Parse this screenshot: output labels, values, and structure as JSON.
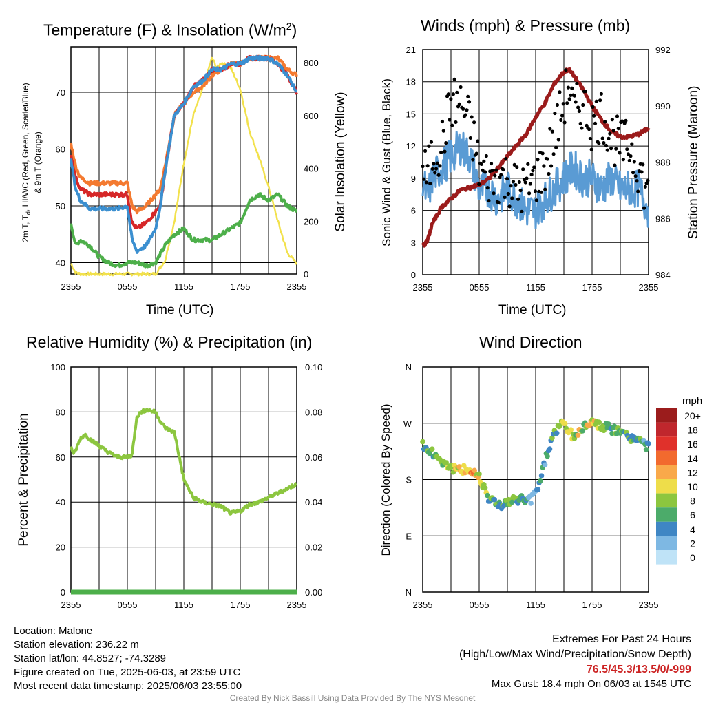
{
  "colors": {
    "temp": "#d62728",
    "dewpoint": "#4daf4a",
    "heat_index": "#3b8fd0",
    "temp_9m": "#f47a30",
    "solar": "#f2e14c",
    "wind": "#5a9bd4",
    "gust": "#000000",
    "pressure": "#9b1b1b",
    "rh": "#8cc63f",
    "precip": "#4daf4a",
    "extremes": "#cc2222",
    "credit": "#888888"
  },
  "charts": {
    "temp": {
      "title": "Temperature (F) & Insolation (W/m",
      "title_sup": "2",
      "title_end": ")",
      "ylabel_left_line1": "2m T, T",
      "ylabel_left_sub": "d",
      "ylabel_left_line1b": ", HI/WC (Red, Green, Scarlet/Blue)",
      "ylabel_left_line2": "& 9m T (Orange)",
      "ylabel_right": "Solar Insolation (Yellow)",
      "xlabel": "Time (UTC)"
    },
    "wind": {
      "title": "Winds (mph) & Pressure (mb)",
      "ylabel_left": "Sonic Wind & Gust (Blue, Black)",
      "ylabel_right": "Station Pressure (Maroon)",
      "xlabel": "Time (UTC)"
    },
    "rh": {
      "title": "Relative Humidity (%) & Precipitation (in)",
      "ylabel_left": "Percent & Precipitation"
    },
    "dir": {
      "title": "Wind Direction",
      "ylabel_left": "Direction (Colored By Speed)"
    }
  },
  "colorbar": {
    "unit": "mph",
    "labels": [
      "20+",
      "18",
      "16",
      "14",
      "12",
      "10",
      "8",
      "6",
      "4",
      "2",
      "0"
    ],
    "colors": [
      "#9b1c1c",
      "#c0272d",
      "#e0312b",
      "#f26a2e",
      "#f9a94a",
      "#eedd4a",
      "#8cc63f",
      "#4cab6a",
      "#3f86c4",
      "#7eb8e3",
      "#bfe3f7"
    ]
  },
  "info": {
    "location": "Location: Malone",
    "elevation": "Station elevation: 236.22 m",
    "latlon": "Station lat/lon: 44.8527; -74.3289",
    "created": "Figure created on Tue, 2025-06-03, at 23:59 UTC",
    "recent": "Most recent data timestamp: 2025/06/03 23:55:00"
  },
  "extremes": {
    "title": "Extremes For Past 24 Hours",
    "subtitle": "(High/Low/Max Wind/Precipitation/Snow Depth)",
    "values": "76.5/45.3/13.5/0/-999",
    "gust": "Max Gust: 18.4 mph On 06/03 at 1545 UTC"
  },
  "credit": "Created By Nick Bassill Using Data Provided By The NYS Mesonet",
  "chart_data": [
    {
      "type": "line",
      "title": "Temperature (F) & Insolation (W/m2)",
      "xlabel": "Time (UTC)",
      "x_ticks": [
        "2355",
        "0555",
        "1155",
        "1755",
        "2355"
      ],
      "xlim": [
        0,
        24
      ],
      "ylim_left": [
        38,
        78
      ],
      "y_ticks_left": [
        40,
        50,
        60,
        70
      ],
      "ylim_right": [
        0,
        860
      ],
      "y_ticks_right": [
        0,
        200,
        400,
        600,
        800
      ],
      "series": [
        {
          "name": "Temperature",
          "axis": "left",
          "x": [
            0,
            0.5,
            1,
            2,
            3,
            4,
            5,
            6,
            6.5,
            7,
            8,
            9,
            9.5,
            10,
            11,
            12,
            13,
            14,
            15,
            16,
            17,
            18,
            19,
            20,
            21,
            22,
            23,
            24
          ],
          "y": [
            59,
            55,
            53,
            52,
            52,
            52,
            52,
            52,
            47,
            46,
            47,
            49,
            50,
            56,
            66,
            68,
            71,
            72,
            74,
            74,
            75,
            75,
            76,
            76,
            76,
            75,
            73,
            70
          ]
        },
        {
          "name": "Dewpoint",
          "axis": "left",
          "x": [
            0,
            0.5,
            1,
            2,
            3,
            4,
            5,
            6,
            7,
            8,
            9,
            10,
            11,
            12,
            13,
            14,
            15,
            16,
            17,
            18,
            19,
            20,
            21,
            22,
            23,
            24
          ],
          "y": [
            47,
            43,
            44,
            43,
            41,
            40,
            39.5,
            40,
            40,
            39.5,
            40,
            43,
            45,
            46,
            44,
            44,
            44,
            45,
            46,
            47,
            51,
            52,
            51,
            52,
            50,
            49
          ]
        },
        {
          "name": "Heat Index / Wind Chill",
          "axis": "left",
          "x": [
            0,
            0.5,
            1,
            2,
            3,
            4,
            5,
            6,
            6.5,
            7,
            8,
            9,
            9.5,
            10,
            11,
            12,
            13,
            14,
            15,
            16,
            17,
            18,
            19,
            20,
            21,
            22,
            23,
            24
          ],
          "y": [
            58,
            53,
            51,
            49.5,
            49.5,
            49.5,
            49.5,
            50,
            44,
            42,
            43,
            46,
            50,
            56,
            66,
            68,
            71,
            72,
            74,
            74,
            75,
            75,
            76,
            76,
            76,
            75,
            73,
            70
          ]
        },
        {
          "name": "9m Temperature",
          "axis": "left",
          "x": [
            0,
            0.5,
            1,
            2,
            3,
            4,
            5,
            6,
            6.5,
            7,
            8,
            9,
            9.5,
            10,
            11,
            12,
            13,
            14,
            15,
            16,
            17,
            18,
            19,
            20,
            21,
            22,
            23,
            24
          ],
          "y": [
            61,
            57,
            55,
            54,
            54,
            54,
            54,
            54,
            50,
            49,
            50,
            52,
            53,
            57,
            66,
            68,
            70,
            71,
            73,
            74,
            75,
            75,
            76,
            76,
            76,
            76,
            74,
            73
          ]
        },
        {
          "name": "Solar Insolation",
          "axis": "right",
          "x": [
            0,
            0.5,
            1,
            2,
            3,
            4,
            5,
            6,
            7,
            8,
            9,
            10,
            11,
            12,
            13,
            14,
            15,
            15.5,
            16,
            17,
            18,
            19,
            20,
            21,
            22,
            23,
            24
          ],
          "y": [
            40,
            5,
            0,
            0,
            0,
            0,
            0,
            0,
            0,
            0,
            0,
            50,
            200,
            420,
            600,
            700,
            820,
            780,
            800,
            780,
            700,
            540,
            440,
            330,
            200,
            80,
            40
          ]
        }
      ]
    },
    {
      "type": "line",
      "title": "Winds (mph) & Pressure (mb)",
      "xlabel": "Time (UTC)",
      "x_ticks": [
        "2355",
        "0555",
        "1155",
        "1755",
        "2355"
      ],
      "xlim": [
        0,
        24
      ],
      "ylim_left": [
        0,
        21
      ],
      "y_ticks_left": [
        0,
        3,
        6,
        9,
        12,
        15,
        18,
        21
      ],
      "ylim_right": [
        984,
        992
      ],
      "y_ticks_right": [
        984,
        986,
        988,
        990,
        992
      ],
      "series": [
        {
          "name": "Sonic Wind",
          "axis": "left",
          "x": [
            0,
            0.5,
            1,
            2,
            3,
            4,
            5,
            6,
            7,
            8,
            9,
            10,
            11,
            12,
            13,
            14,
            15,
            16,
            17,
            18,
            19,
            20,
            21,
            22,
            23,
            24
          ],
          "y": [
            9,
            7,
            9,
            10,
            11,
            12,
            11,
            8,
            8,
            7,
            8,
            7,
            6,
            6,
            7,
            8,
            9,
            10,
            9,
            9,
            8,
            9,
            8,
            8,
            8,
            6
          ]
        },
        {
          "name": "Gust",
          "axis": "left",
          "x": [
            0,
            0.5,
            1,
            2,
            3,
            4,
            5,
            6,
            7,
            8,
            9,
            10,
            11,
            12,
            13,
            14,
            15,
            15.5,
            16,
            17,
            18,
            19,
            20,
            21,
            22,
            23,
            24
          ],
          "y": [
            10,
            9,
            11,
            12,
            16,
            16,
            14,
            10,
            9,
            9,
            9,
            8,
            8,
            9,
            10,
            13,
            16,
            18,
            15,
            16,
            14,
            15,
            13,
            12,
            12,
            10,
            7
          ]
        },
        {
          "name": "Station Pressure",
          "axis": "right",
          "x": [
            0,
            0.5,
            1,
            2,
            3,
            4,
            5,
            6,
            7,
            8,
            9,
            10,
            11,
            12,
            13,
            14,
            15,
            15.5,
            16,
            17,
            18,
            19,
            20,
            21,
            22,
            23,
            24
          ],
          "y": [
            985,
            985.2,
            985.8,
            986.4,
            986.7,
            987.0,
            987.1,
            987.2,
            987.4,
            987.8,
            988.2,
            988.6,
            989.0,
            989.6,
            990.1,
            990.8,
            991.2,
            991.3,
            991.1,
            990.6,
            990.0,
            989.5,
            989.1,
            988.9,
            988.9,
            989.0,
            989.2
          ]
        }
      ]
    },
    {
      "type": "line",
      "title": "Relative Humidity (%) & Precipitation (in)",
      "x_ticks": [
        "2355",
        "0555",
        "1155",
        "1755",
        "2355"
      ],
      "xlim": [
        0,
        24
      ],
      "ylim_left": [
        0,
        100
      ],
      "y_ticks_left": [
        0,
        20,
        40,
        60,
        80,
        100
      ],
      "ylim_right": [
        0,
        0.1
      ],
      "y_ticks_right": [
        "0.00",
        "0.02",
        "0.04",
        "0.06",
        "0.08",
        "0.10"
      ],
      "series": [
        {
          "name": "Relative Humidity",
          "axis": "left",
          "x": [
            0,
            0.3,
            1,
            1.5,
            2,
            3,
            4,
            5,
            6,
            6.5,
            7,
            7.5,
            8,
            9,
            9.5,
            10,
            11,
            12,
            13,
            14,
            15,
            16,
            17,
            18,
            19,
            20,
            21,
            22,
            23,
            24
          ],
          "y": [
            65,
            61,
            68,
            70,
            68,
            65,
            62,
            60,
            60,
            61,
            78,
            80,
            81,
            80,
            76,
            73,
            71,
            50,
            42,
            40,
            39,
            38,
            35,
            36,
            39,
            40,
            42,
            44,
            46,
            48
          ]
        },
        {
          "name": "Precipitation",
          "axis": "right",
          "x": [
            0,
            24
          ],
          "y": [
            0,
            0
          ]
        }
      ]
    },
    {
      "type": "scatter",
      "title": "Wind Direction",
      "x_ticks": [
        "2355",
        "0555",
        "1155",
        "1755",
        "2355"
      ],
      "xlim": [
        0,
        24
      ],
      "y_ticks": [
        "N",
        "E",
        "S",
        "W",
        "N"
      ],
      "ylim": [
        0,
        360
      ],
      "points": [
        {
          "x": 0,
          "y": 238,
          "s": 7
        },
        {
          "x": 0.5,
          "y": 226,
          "s": 7
        },
        {
          "x": 1,
          "y": 222,
          "s": 7
        },
        {
          "x": 1.5,
          "y": 218,
          "s": 8
        },
        {
          "x": 2,
          "y": 210,
          "s": 9
        },
        {
          "x": 2.5,
          "y": 205,
          "s": 10
        },
        {
          "x": 3,
          "y": 200,
          "s": 10
        },
        {
          "x": 3.5,
          "y": 196,
          "s": 11
        },
        {
          "x": 4,
          "y": 194,
          "s": 12
        },
        {
          "x": 4.5,
          "y": 196,
          "s": 12
        },
        {
          "x": 5,
          "y": 194,
          "s": 13
        },
        {
          "x": 5.5,
          "y": 190,
          "s": 11
        },
        {
          "x": 6,
          "y": 185,
          "s": 10
        },
        {
          "x": 6.5,
          "y": 170,
          "s": 9
        },
        {
          "x": 7,
          "y": 152,
          "s": 7
        },
        {
          "x": 7.5,
          "y": 145,
          "s": 7
        },
        {
          "x": 8,
          "y": 142,
          "s": 6
        },
        {
          "x": 8.5,
          "y": 140,
          "s": 7
        },
        {
          "x": 9,
          "y": 143,
          "s": 7
        },
        {
          "x": 9.5,
          "y": 146,
          "s": 8
        },
        {
          "x": 10,
          "y": 147,
          "s": 6
        },
        {
          "x": 10.5,
          "y": 150,
          "s": 7
        },
        {
          "x": 11,
          "y": 145,
          "s": 5
        },
        {
          "x": 11.5,
          "y": 148,
          "s": 4
        },
        {
          "x": 12,
          "y": 160,
          "s": 5
        },
        {
          "x": 12.5,
          "y": 180,
          "s": 6
        },
        {
          "x": 13,
          "y": 210,
          "s": 5
        },
        {
          "x": 13.5,
          "y": 235,
          "s": 7
        },
        {
          "x": 14,
          "y": 255,
          "s": 7
        },
        {
          "x": 14.5,
          "y": 265,
          "s": 9
        },
        {
          "x": 15,
          "y": 270,
          "s": 10
        },
        {
          "x": 15.5,
          "y": 258,
          "s": 10
        },
        {
          "x": 16,
          "y": 248,
          "s": 8
        },
        {
          "x": 16.5,
          "y": 255,
          "s": 11
        },
        {
          "x": 17,
          "y": 262,
          "s": 9
        },
        {
          "x": 17.5,
          "y": 270,
          "s": 12
        },
        {
          "x": 18,
          "y": 275,
          "s": 11
        },
        {
          "x": 18.5,
          "y": 268,
          "s": 10
        },
        {
          "x": 19,
          "y": 262,
          "s": 9
        },
        {
          "x": 19.5,
          "y": 265,
          "s": 8
        },
        {
          "x": 20,
          "y": 260,
          "s": 7
        },
        {
          "x": 20.5,
          "y": 258,
          "s": 8
        },
        {
          "x": 21,
          "y": 255,
          "s": 8
        },
        {
          "x": 21.5,
          "y": 252,
          "s": 7
        },
        {
          "x": 22,
          "y": 248,
          "s": 7
        },
        {
          "x": 22.5,
          "y": 245,
          "s": 6
        },
        {
          "x": 23,
          "y": 242,
          "s": 7
        },
        {
          "x": 23.5,
          "y": 238,
          "s": 5
        },
        {
          "x": 24,
          "y": 232,
          "s": 4
        }
      ]
    }
  ]
}
